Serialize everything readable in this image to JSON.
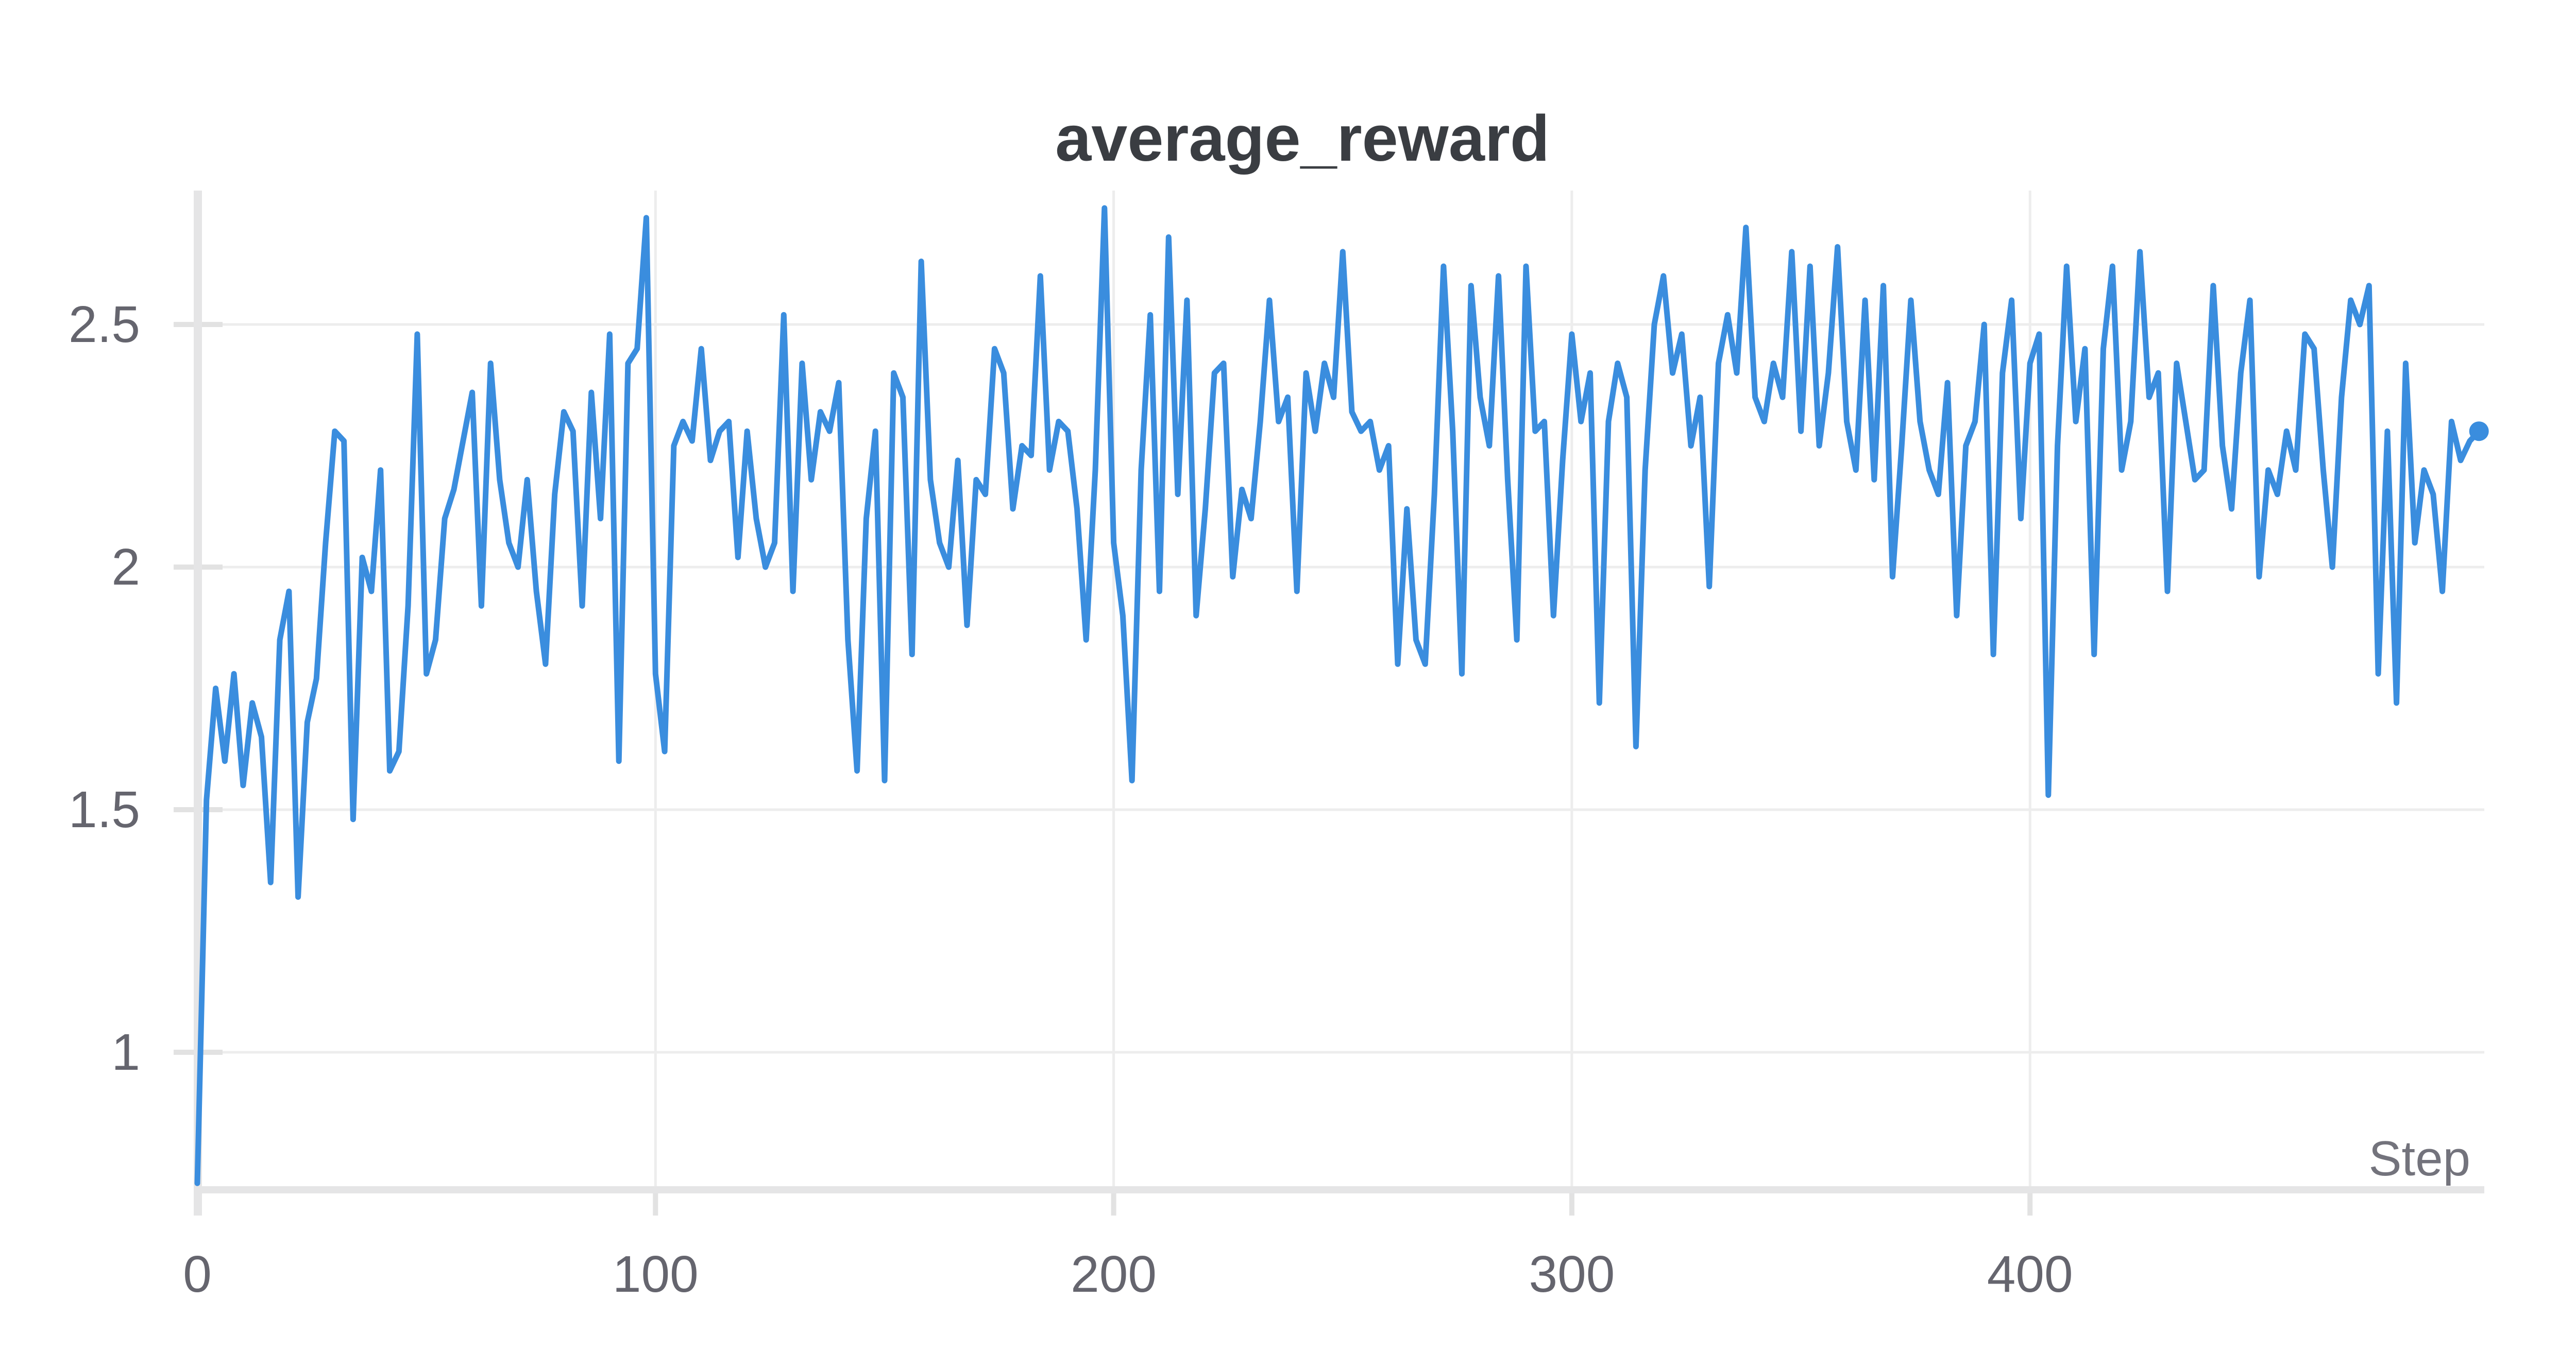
{
  "page": {
    "background": "#ffffff"
  },
  "chart_data": {
    "type": "line",
    "title": "average_reward",
    "xlabel": "Step",
    "ylabel": "",
    "x_ticks": [
      0,
      100,
      200,
      300,
      400
    ],
    "y_ticks": [
      1,
      1.5,
      2,
      2.5
    ],
    "xlim": [
      0,
      499
    ],
    "ylim": [
      0.72,
      2.78
    ],
    "grid": true,
    "legend": false,
    "end_marker": true,
    "colors": {
      "line": "#3a8dde",
      "gridline": "#ededed",
      "tick_mark": "#e2e2e2",
      "axis_band": "#e5e5e6",
      "tick_label": "#65656e",
      "title": "#3a3d42",
      "axis_title": "#73737c"
    },
    "series": [
      {
        "name": "average_reward",
        "x_start": 0,
        "x_step": 2,
        "values": [
          0.73,
          1.52,
          1.75,
          1.6,
          1.78,
          1.55,
          1.72,
          1.65,
          1.35,
          1.85,
          1.95,
          1.32,
          1.68,
          1.77,
          2.05,
          2.28,
          2.26,
          1.48,
          2.02,
          1.95,
          2.2,
          1.58,
          1.62,
          1.92,
          2.48,
          1.78,
          1.85,
          2.1,
          2.16,
          2.26,
          2.36,
          1.92,
          2.42,
          2.18,
          2.05,
          2.0,
          2.18,
          1.95,
          1.8,
          2.15,
          2.32,
          2.28,
          1.92,
          2.36,
          2.1,
          2.48,
          1.6,
          2.42,
          2.45,
          2.72,
          1.78,
          1.62,
          2.25,
          2.3,
          2.26,
          2.45,
          2.22,
          2.28,
          2.3,
          2.02,
          2.28,
          2.1,
          2.0,
          2.05,
          2.52,
          1.95,
          2.42,
          2.18,
          2.32,
          2.28,
          2.38,
          1.85,
          1.58,
          2.1,
          2.28,
          1.56,
          2.4,
          2.35,
          1.82,
          2.63,
          2.18,
          2.05,
          2.0,
          2.22,
          1.88,
          2.18,
          2.15,
          2.45,
          2.4,
          2.12,
          2.25,
          2.23,
          2.6,
          2.2,
          2.3,
          2.28,
          2.12,
          1.85,
          2.2,
          2.74,
          2.05,
          1.9,
          1.56,
          2.2,
          2.52,
          1.95,
          2.68,
          2.15,
          2.55,
          1.9,
          2.12,
          2.4,
          2.42,
          1.98,
          2.16,
          2.1,
          2.3,
          2.55,
          2.3,
          2.35,
          1.95,
          2.4,
          2.28,
          2.42,
          2.35,
          2.65,
          2.32,
          2.28,
          2.3,
          2.2,
          2.25,
          1.8,
          2.12,
          1.85,
          1.8,
          2.15,
          2.62,
          2.28,
          1.78,
          2.58,
          2.35,
          2.25,
          2.6,
          2.18,
          1.85,
          2.62,
          2.28,
          2.3,
          1.9,
          2.22,
          2.48,
          2.3,
          2.4,
          1.72,
          2.3,
          2.42,
          2.35,
          1.63,
          2.2,
          2.5,
          2.6,
          2.4,
          2.48,
          2.25,
          2.35,
          1.96,
          2.42,
          2.52,
          2.4,
          2.7,
          2.35,
          2.3,
          2.42,
          2.35,
          2.65,
          2.28,
          2.62,
          2.25,
          2.4,
          2.66,
          2.3,
          2.2,
          2.55,
          2.18,
          2.58,
          1.98,
          2.25,
          2.55,
          2.3,
          2.2,
          2.15,
          2.38,
          1.9,
          2.25,
          2.3,
          2.5,
          1.82,
          2.4,
          2.55,
          2.1,
          2.42,
          2.48,
          1.53,
          2.25,
          2.62,
          2.3,
          2.45,
          1.82,
          2.45,
          2.62,
          2.2,
          2.3,
          2.65,
          2.35,
          2.4,
          1.95,
          2.42,
          2.3,
          2.18,
          2.2,
          2.58,
          2.25,
          2.12,
          2.4,
          2.55,
          1.98,
          2.2,
          2.15,
          2.28,
          2.2,
          2.48,
          2.45,
          2.2,
          2.0,
          2.35,
          2.55,
          2.5,
          2.58,
          1.78,
          2.28,
          1.72,
          2.42,
          2.05,
          2.2,
          2.15,
          1.95,
          2.3,
          2.22,
          2.26,
          2.28
        ]
      }
    ]
  }
}
